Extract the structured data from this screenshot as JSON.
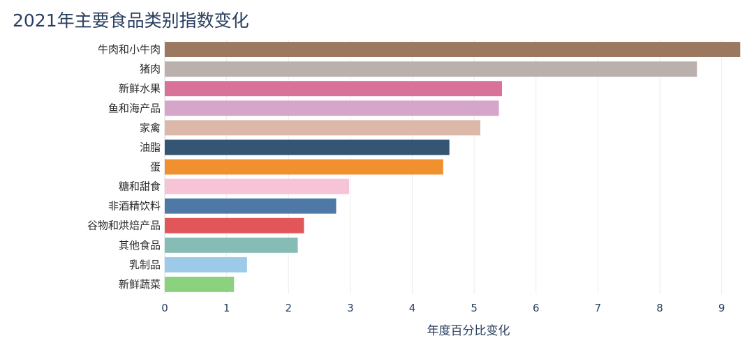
{
  "chart_data": {
    "type": "bar",
    "orientation": "horizontal",
    "title": "2021年主要食品类别指数变化",
    "xlabel": "年度百分比变化",
    "ylabel": "",
    "xlim": [
      0,
      9.5
    ],
    "xticks": [
      0,
      1,
      2,
      3,
      4,
      5,
      6,
      7,
      8,
      9
    ],
    "grid": true,
    "categories": [
      "牛肉和小牛肉",
      "猪肉",
      "新鲜水果",
      "鱼和海产品",
      "家禽",
      "油脂",
      "蛋",
      "糖和甜食",
      "非酒精饮料",
      "谷物和烘焙产品",
      "其他食品",
      "乳制品",
      "新鲜蔬菜"
    ],
    "values": [
      9.3,
      8.6,
      5.45,
      5.4,
      5.1,
      4.6,
      4.5,
      2.98,
      2.77,
      2.25,
      2.15,
      1.33,
      1.12
    ],
    "colors": [
      "#9c7860",
      "#bab0ac",
      "#d87298",
      "#d5a6c9",
      "#dbb8a9",
      "#345573",
      "#f1902e",
      "#f7c3d7",
      "#4e79a7",
      "#e15759",
      "#86bcb6",
      "#9ecae9",
      "#8cd17d"
    ]
  }
}
